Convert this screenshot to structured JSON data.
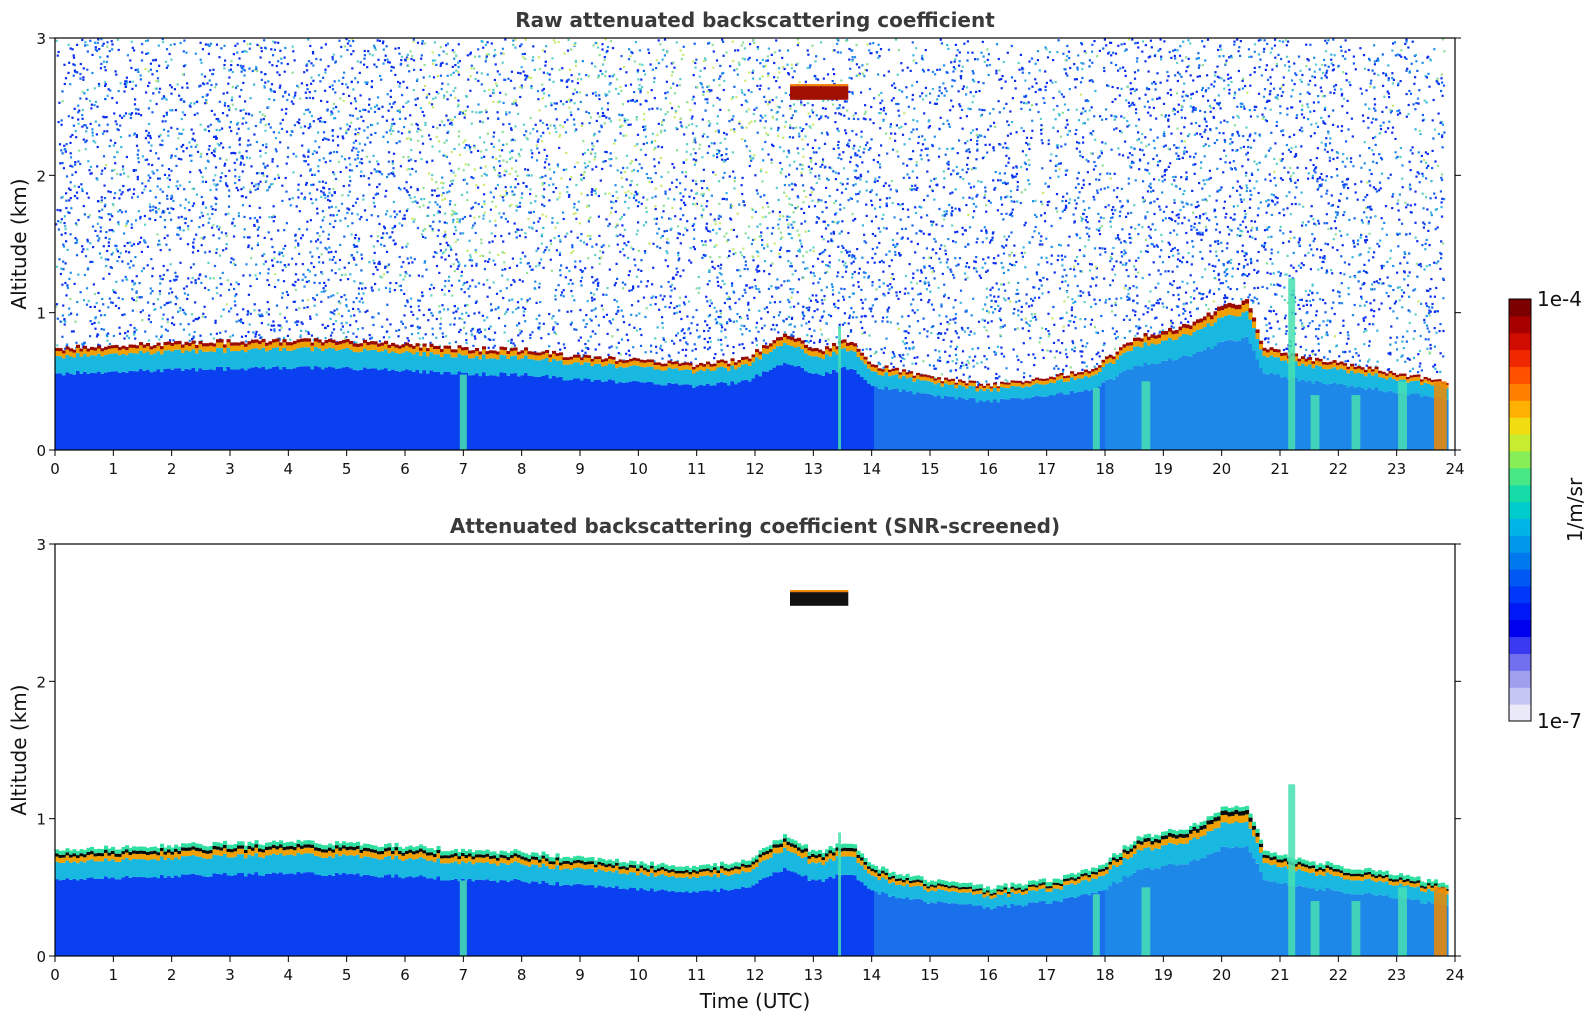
{
  "chart_data": [
    {
      "type": "heatmap",
      "title": "Raw attenuated backscattering coefficient",
      "xlabel": "",
      "ylabel": "Altitude (km)",
      "xlim": [
        0,
        24
      ],
      "ylim": [
        0,
        3
      ],
      "x_ticks": [
        "0",
        "1",
        "2",
        "3",
        "4",
        "5",
        "6",
        "7",
        "8",
        "9",
        "10",
        "11",
        "12",
        "13",
        "14",
        "15",
        "16",
        "17",
        "18",
        "19",
        "20",
        "21",
        "22",
        "23",
        "24"
      ],
      "y_ticks": [
        "0",
        "1",
        "2",
        "3"
      ],
      "noise": true,
      "layer_top_km": [
        [
          0,
          0.74
        ],
        [
          1,
          0.76
        ],
        [
          2,
          0.78
        ],
        [
          3,
          0.79
        ],
        [
          4,
          0.8
        ],
        [
          5,
          0.79
        ],
        [
          6,
          0.77
        ],
        [
          7,
          0.74
        ],
        [
          8,
          0.73
        ],
        [
          9,
          0.68
        ],
        [
          10,
          0.65
        ],
        [
          11,
          0.62
        ],
        [
          11.8,
          0.66
        ],
        [
          12.5,
          0.86
        ],
        [
          13,
          0.72
        ],
        [
          13.6,
          0.8
        ],
        [
          14,
          0.62
        ],
        [
          15,
          0.52
        ],
        [
          16,
          0.47
        ],
        [
          17,
          0.52
        ],
        [
          17.8,
          0.6
        ],
        [
          18.5,
          0.82
        ],
        [
          19.5,
          0.92
        ],
        [
          20,
          1.05
        ],
        [
          20.4,
          1.08
        ],
        [
          20.7,
          0.75
        ],
        [
          21.5,
          0.66
        ],
        [
          22.5,
          0.6
        ],
        [
          23.5,
          0.52
        ],
        [
          23.8,
          0.5
        ]
      ],
      "cloud": {
        "x": [
          12.6,
          13.6
        ],
        "y": [
          2.55,
          2.65
        ]
      },
      "plumes": [
        {
          "x": 7.0,
          "top": 0.55,
          "width": 0.12
        },
        {
          "x": 13.45,
          "top": 0.9,
          "width": 0.05
        },
        {
          "x": 17.85,
          "top": 0.45,
          "width": 0.12
        },
        {
          "x": 18.7,
          "top": 0.5,
          "width": 0.15
        },
        {
          "x": 21.2,
          "top": 1.25,
          "width": 0.12
        },
        {
          "x": 21.6,
          "top": 0.4,
          "width": 0.15
        },
        {
          "x": 22.3,
          "top": 0.4,
          "width": 0.15
        },
        {
          "x": 23.1,
          "top": 0.5,
          "width": 0.15
        },
        {
          "x": 23.75,
          "top": 0.5,
          "width": 0.22
        }
      ]
    },
    {
      "type": "heatmap",
      "title": "Attenuated backscattering coefficient (SNR-screened)",
      "xlabel": "Time (UTC)",
      "ylabel": "Altitude (km)",
      "xlim": [
        0,
        24
      ],
      "ylim": [
        0,
        3
      ],
      "x_ticks": [
        "0",
        "1",
        "2",
        "3",
        "4",
        "5",
        "6",
        "7",
        "8",
        "9",
        "10",
        "11",
        "12",
        "13",
        "14",
        "15",
        "16",
        "17",
        "18",
        "19",
        "20",
        "21",
        "22",
        "23",
        "24"
      ],
      "y_ticks": [
        "0",
        "1",
        "2",
        "3"
      ],
      "noise": false,
      "layer_top_km": [
        [
          0,
          0.74
        ],
        [
          1,
          0.76
        ],
        [
          2,
          0.78
        ],
        [
          3,
          0.79
        ],
        [
          4,
          0.8
        ],
        [
          5,
          0.79
        ],
        [
          6,
          0.77
        ],
        [
          7,
          0.74
        ],
        [
          8,
          0.73
        ],
        [
          9,
          0.68
        ],
        [
          10,
          0.65
        ],
        [
          11,
          0.62
        ],
        [
          11.8,
          0.66
        ],
        [
          12.5,
          0.86
        ],
        [
          13,
          0.72
        ],
        [
          13.6,
          0.8
        ],
        [
          14,
          0.62
        ],
        [
          15,
          0.52
        ],
        [
          16,
          0.47
        ],
        [
          17,
          0.52
        ],
        [
          17.8,
          0.6
        ],
        [
          18.5,
          0.82
        ],
        [
          19.5,
          0.92
        ],
        [
          20,
          1.05
        ],
        [
          20.4,
          1.08
        ],
        [
          20.7,
          0.75
        ],
        [
          21.5,
          0.66
        ],
        [
          22.5,
          0.6
        ],
        [
          23.5,
          0.52
        ],
        [
          23.8,
          0.5
        ]
      ],
      "cloud": {
        "x": [
          12.6,
          13.6
        ],
        "y": [
          2.55,
          2.65
        ]
      },
      "plumes": [
        {
          "x": 7.0,
          "top": 0.55,
          "width": 0.12
        },
        {
          "x": 13.45,
          "top": 0.9,
          "width": 0.05
        },
        {
          "x": 17.85,
          "top": 0.45,
          "width": 0.12
        },
        {
          "x": 18.7,
          "top": 0.5,
          "width": 0.15
        },
        {
          "x": 21.2,
          "top": 1.25,
          "width": 0.12
        },
        {
          "x": 21.6,
          "top": 0.4,
          "width": 0.15
        },
        {
          "x": 22.3,
          "top": 0.4,
          "width": 0.15
        },
        {
          "x": 23.1,
          "top": 0.5,
          "width": 0.15
        },
        {
          "x": 23.75,
          "top": 0.5,
          "width": 0.22
        }
      ]
    }
  ],
  "colorbar": {
    "label": "1/m/sr",
    "max_label": "1e-4",
    "min_label": "1e-7",
    "colors": [
      "#e9e9f7",
      "#c6c6f2",
      "#9f9fee",
      "#7070ee",
      "#3a3af0",
      "#0000ee",
      "#0018f6",
      "#0038fa",
      "#0058f4",
      "#0078ee",
      "#0098ea",
      "#00b4e6",
      "#00cccc",
      "#18dca8",
      "#48e884",
      "#88ee58",
      "#c8ec30",
      "#f0dc10",
      "#ffb000",
      "#ff8000",
      "#ff5000",
      "#f02800",
      "#d00c00",
      "#a80000",
      "#7c0000"
    ]
  }
}
